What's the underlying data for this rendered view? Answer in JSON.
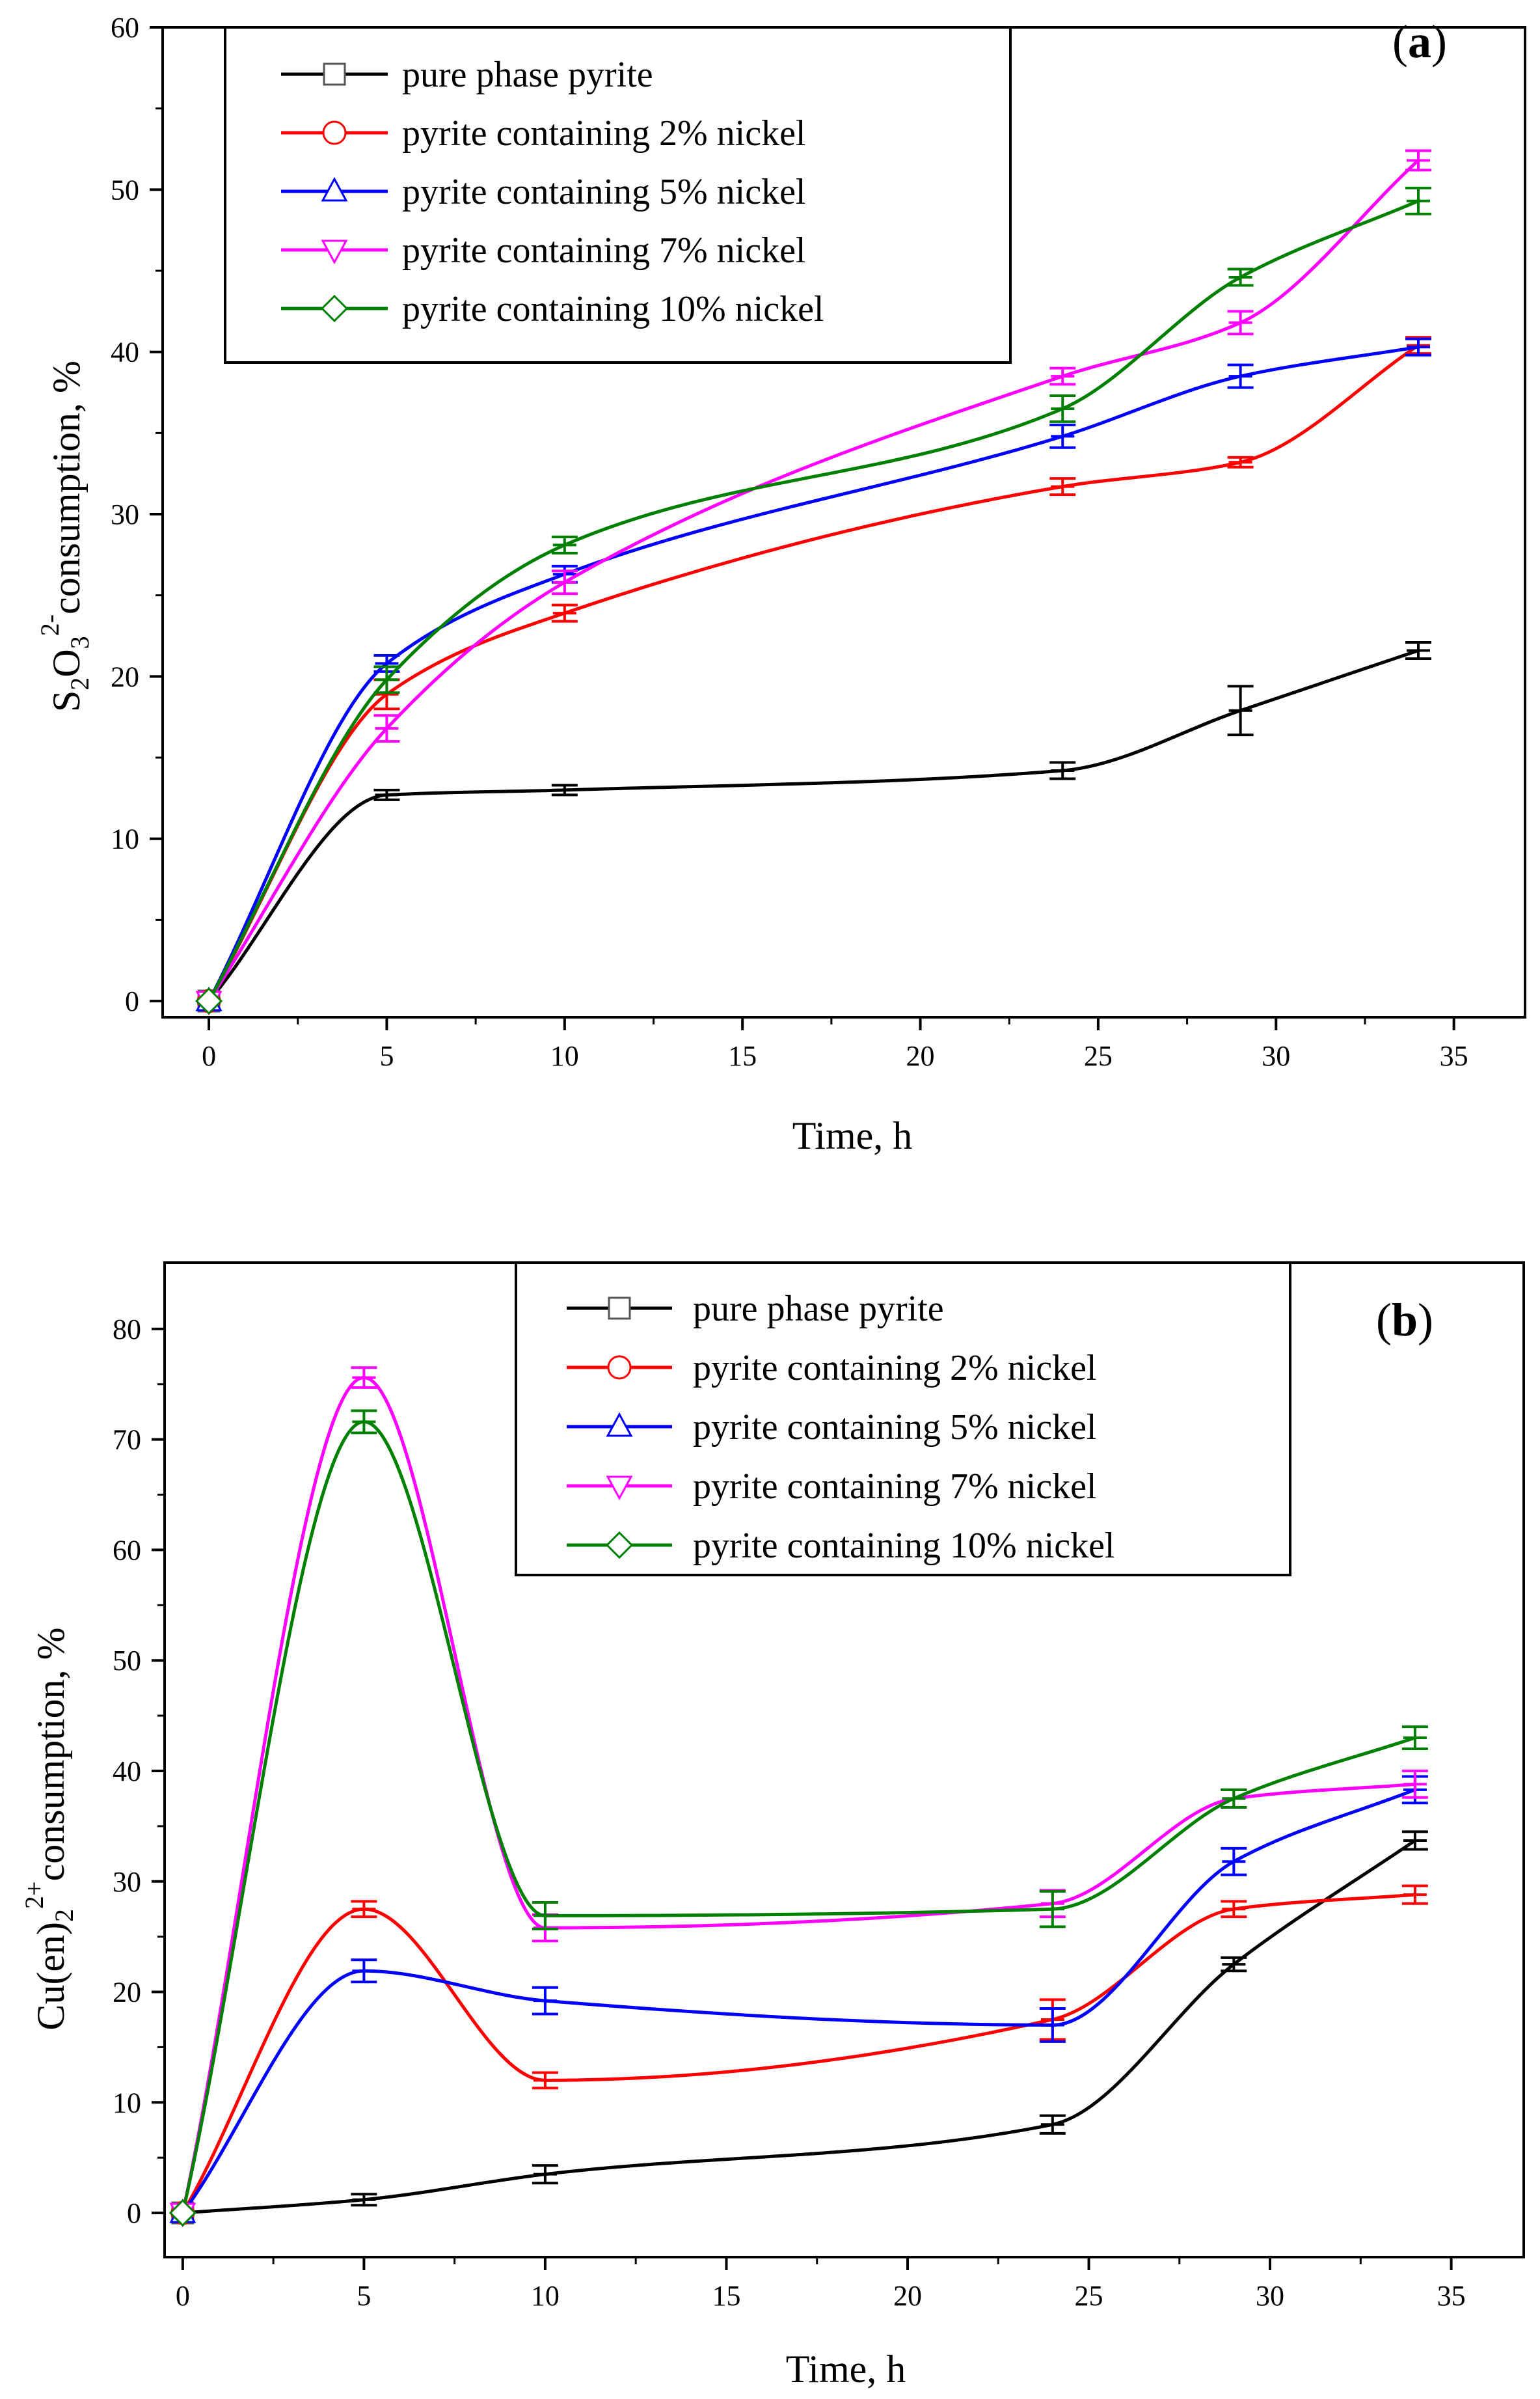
{
  "chart_data": [
    {
      "type": "line",
      "panel_label": "a",
      "x": [
        0,
        5,
        10,
        24,
        29,
        34
      ],
      "xlim": [
        -1.3,
        37
      ],
      "ylim": [
        -1.0,
        60
      ],
      "xticks": [
        "0",
        "5",
        "10",
        "15",
        "20",
        "25",
        "30",
        "35"
      ],
      "yticks": [
        "0",
        "10",
        "20",
        "30",
        "40",
        "50",
        "60"
      ],
      "xlabel": "Time, h",
      "ylabel": {
        "main": "S",
        "sub1": "2",
        "mid": "O",
        "sub2": "3",
        "sup": "2-",
        "rest": "consumption, %"
      },
      "legend_position": "top-left",
      "series": [
        {
          "name": "pure phase pyrite",
          "color": "#000000",
          "marker": "square",
          "values": [
            0,
            12.7,
            13.0,
            14.2,
            17.9,
            21.6
          ],
          "errors": [
            0,
            0.3,
            0.3,
            0.5,
            1.5,
            0.5
          ]
        },
        {
          "name": "pyrite containing 2% nickel",
          "color": "#ff0000",
          "marker": "circle",
          "values": [
            0,
            18.9,
            23.9,
            31.7,
            33.2,
            40.4
          ],
          "errors": [
            0,
            0.9,
            0.5,
            0.5,
            0.3,
            0.5
          ]
        },
        {
          "name": "pyrite containing 5% nickel",
          "color": "#0000ff",
          "marker": "triangle-up",
          "values": [
            0,
            20.8,
            26.3,
            34.8,
            38.5,
            40.3
          ],
          "errors": [
            0,
            0.5,
            0.5,
            0.7,
            0.7,
            0.5
          ]
        },
        {
          "name": "pyrite containing 7% nickel",
          "color": "#ff00ff",
          "marker": "triangle-down",
          "values": [
            0,
            16.8,
            25.8,
            38.5,
            41.8,
            51.8
          ],
          "errors": [
            0,
            0.8,
            0.7,
            0.5,
            0.7,
            0.6
          ]
        },
        {
          "name": "pyrite containing 10% nickel",
          "color": "#008000",
          "marker": "diamond",
          "values": [
            0,
            19.8,
            28.1,
            36.5,
            44.6,
            49.3
          ],
          "errors": [
            0,
            0.8,
            0.5,
            0.8,
            0.5,
            0.8
          ]
        }
      ]
    },
    {
      "type": "line",
      "panel_label": "b",
      "x": [
        0,
        5,
        10,
        24,
        29,
        34
      ],
      "xlim": [
        -0.5,
        37
      ],
      "ylim": [
        -4,
        86
      ],
      "xticks": [
        "0",
        "5",
        "10",
        "15",
        "20",
        "25",
        "30",
        "35"
      ],
      "yticks": [
        "0",
        "10",
        "20",
        "30",
        "40",
        "50",
        "60",
        "70",
        "80"
      ],
      "xlabel": "Time, h",
      "ylabel": {
        "main": "Cu(en)",
        "sub1": "2",
        "sup": "2+",
        "rest": "consumption, %"
      },
      "legend_position": "top-right",
      "series": [
        {
          "name": "pure phase pyrite",
          "color": "#000000",
          "marker": "square",
          "values": [
            0,
            1.2,
            3.5,
            8.0,
            22.5,
            33.7
          ],
          "errors": [
            0,
            0.5,
            0.8,
            0.8,
            0.6,
            0.8
          ]
        },
        {
          "name": "pyrite containing 2% nickel",
          "color": "#ff0000",
          "marker": "circle",
          "values": [
            0,
            27.5,
            12.0,
            17.5,
            27.5,
            28.8
          ],
          "errors": [
            0,
            0.7,
            0.7,
            1.8,
            0.7,
            0.8
          ]
        },
        {
          "name": "pyrite containing 5% nickel",
          "color": "#0000ff",
          "marker": "triangle-up",
          "values": [
            0,
            21.9,
            19.2,
            17.0,
            31.8,
            38.3
          ],
          "errors": [
            0,
            1.0,
            1.2,
            1.5,
            1.2,
            1.2
          ]
        },
        {
          "name": "pyrite containing 7% nickel",
          "color": "#ff00ff",
          "marker": "triangle-down",
          "values": [
            0,
            75.6,
            25.8,
            28.0,
            37.5,
            38.8
          ],
          "errors": [
            0,
            0.9,
            1.2,
            1.2,
            0.8,
            1.2
          ]
        },
        {
          "name": "pyrite containing 10% nickel",
          "color": "#008000",
          "marker": "diamond",
          "values": [
            0,
            71.6,
            26.9,
            27.5,
            37.5,
            43.0
          ],
          "errors": [
            0,
            1.0,
            1.2,
            1.6,
            0.8,
            1.0
          ]
        }
      ]
    }
  ]
}
